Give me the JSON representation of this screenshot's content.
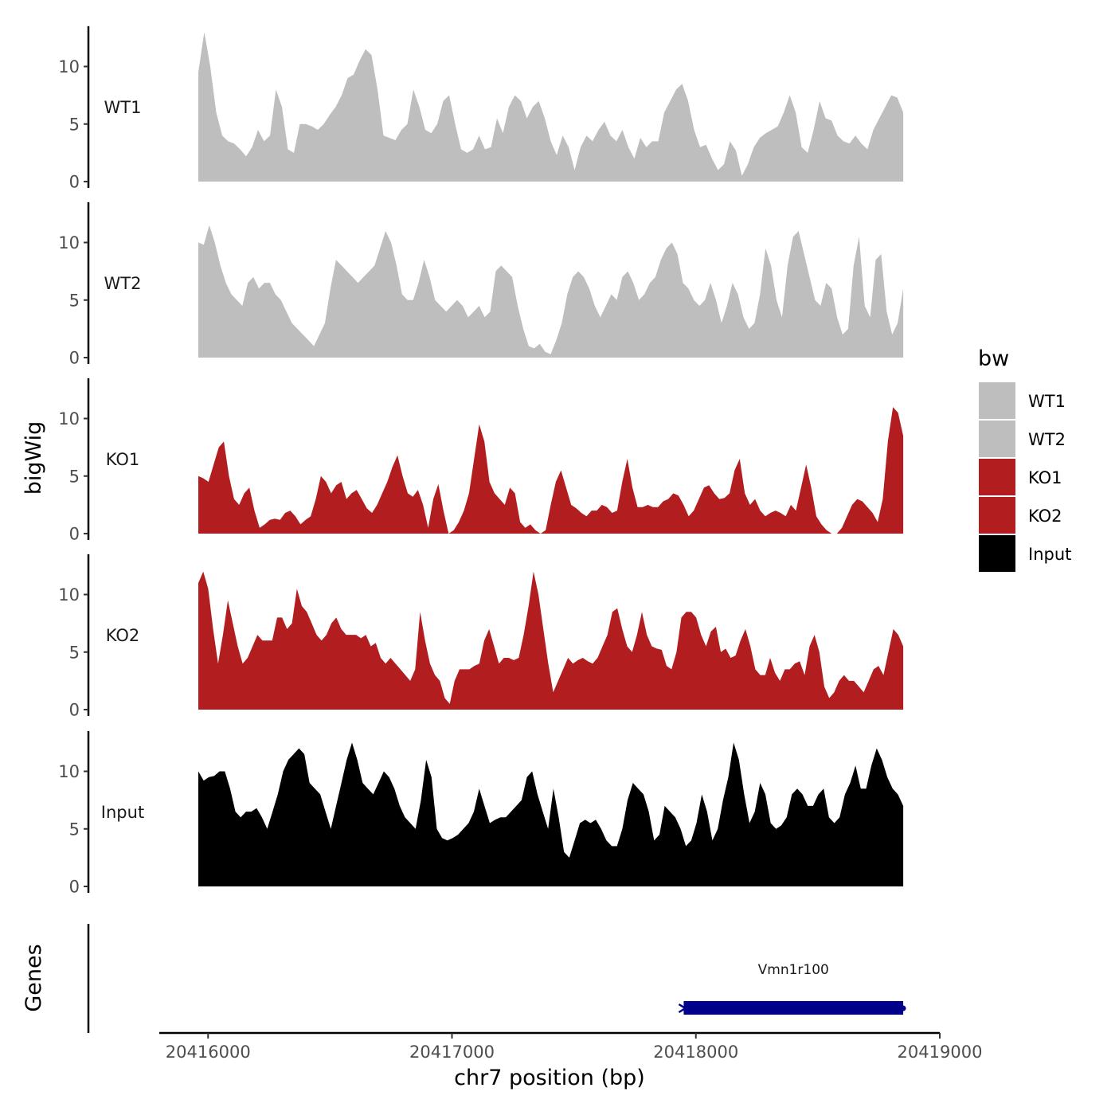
{
  "chart_data": {
    "type": "area",
    "x_axis": {
      "label": "chr7 position (bp)",
      "range": [
        20415800,
        20419000
      ],
      "ticks": [
        20416000,
        20417000,
        20418000,
        20419000
      ],
      "tick_labels": [
        "20416000",
        "20417000",
        "20418000",
        "20419000"
      ]
    },
    "y_axis": {
      "label": "bigWig",
      "range": [
        0,
        13.5
      ],
      "ticks": [
        0,
        5,
        10
      ],
      "tick_labels": [
        "0",
        "5",
        "10"
      ]
    },
    "tracks_x_start": 20415960,
    "tracks_x_end": 20418850,
    "series": [
      {
        "name": "WT1",
        "color": "#bebebe",
        "values": [
          9.5,
          13,
          10,
          6,
          4,
          3.5,
          3.3,
          2.8,
          2.2,
          3,
          4.5,
          3.5,
          4,
          8,
          6.5,
          2.8,
          2.5,
          5,
          5,
          4.8,
          4.5,
          5,
          5.8,
          6.5,
          7.5,
          9,
          9.3,
          10.5,
          11.5,
          11,
          8,
          4,
          3.8,
          3.6,
          4.5,
          5,
          8,
          6.5,
          4.5,
          4.2,
          5,
          7,
          7.5,
          5,
          2.8,
          2.5,
          2.8,
          4,
          2.8,
          3,
          5.5,
          4.2,
          6.5,
          7.5,
          7,
          5.5,
          6.5,
          7,
          5.5,
          3.5,
          2.3,
          4,
          3,
          1,
          3,
          4,
          3.5,
          4.5,
          5.2,
          4,
          3.5,
          4.5,
          3,
          2,
          3.8,
          3,
          3.5,
          3.5,
          6,
          7,
          8,
          8.5,
          7,
          4.5,
          3,
          3.2,
          2,
          1,
          1.5,
          3.5,
          2.7,
          0.5,
          1.5,
          3,
          3.8,
          4.2,
          4.5,
          4.8,
          6,
          7.5,
          6,
          3,
          2.5,
          4.5,
          7,
          5.5,
          5.3,
          4,
          3.5,
          3.3,
          4,
          3.3,
          2.8,
          4.5,
          5.5,
          6.5,
          7.5,
          7.3,
          6
        ]
      },
      {
        "name": "WT2",
        "color": "#bebebe",
        "values": [
          10,
          9.8,
          11.5,
          10,
          8,
          6.5,
          5.5,
          5,
          4.5,
          6.5,
          7,
          6,
          6.5,
          6.5,
          5.5,
          5,
          4,
          3,
          2.5,
          2,
          1.5,
          1,
          2,
          3,
          6,
          8.5,
          8,
          7.5,
          7,
          6.5,
          7,
          7.5,
          8,
          9.5,
          11,
          10,
          8,
          5.5,
          5,
          5,
          6.5,
          8.5,
          7,
          5,
          4.5,
          4,
          4.5,
          5,
          4.5,
          3.5,
          4,
          4.5,
          3.5,
          4,
          7.5,
          8,
          7.5,
          7,
          4.5,
          2.5,
          1,
          0.8,
          1.2,
          0.5,
          0.3,
          1.5,
          3,
          5.5,
          7,
          7.5,
          7,
          6,
          4.5,
          3.5,
          4.5,
          5.5,
          5,
          7,
          7.5,
          6.5,
          5,
          5.5,
          6.5,
          7,
          8.5,
          9.5,
          10,
          9,
          6.5,
          6,
          5,
          4.5,
          5,
          6.5,
          5,
          3,
          4.5,
          6.5,
          5.5,
          3.5,
          2.5,
          3,
          5.5,
          9.5,
          8,
          5,
          3.5,
          8,
          10.5,
          11,
          9,
          7,
          5,
          4.5,
          6.5,
          6,
          3.5,
          2,
          2.5,
          8,
          10.5,
          4.5,
          3.5,
          8.5,
          9,
          4,
          2,
          3,
          6
        ]
      },
      {
        "name": "KO1",
        "color": "#b21e20",
        "values": [
          5,
          4.8,
          4.5,
          6,
          7.5,
          8,
          5,
          3,
          2.5,
          3.5,
          4,
          2,
          0.5,
          0.8,
          1.2,
          1.3,
          1.2,
          1.8,
          2,
          1.5,
          0.8,
          1.2,
          1.5,
          3,
          5,
          4.5,
          3.5,
          4.2,
          4.5,
          3,
          3.5,
          3.8,
          3,
          2.2,
          1.8,
          2.5,
          3.5,
          4.5,
          5.8,
          6.8,
          5,
          3.5,
          3.2,
          3.8,
          2.5,
          0.5,
          3,
          4.3,
          2,
          0,
          0.3,
          1,
          2,
          3.5,
          6.5,
          9.5,
          8,
          4.5,
          3.5,
          3,
          2.5,
          4,
          3.5,
          1,
          0.5,
          0.8,
          0.3,
          0,
          0.3,
          2.5,
          4.5,
          5.5,
          4,
          2.5,
          2.2,
          1.8,
          1.5,
          2,
          2,
          2.5,
          2.3,
          1.8,
          2,
          4.5,
          6.5,
          4,
          2.3,
          2.3,
          2.5,
          2.3,
          2.3,
          2.8,
          3,
          3.5,
          3.3,
          2.5,
          1.5,
          2,
          3,
          4,
          4.2,
          3.5,
          3,
          3.1,
          3.5,
          5.5,
          6.5,
          3.5,
          2.5,
          3,
          2,
          1.5,
          1.8,
          2,
          1.8,
          1.5,
          2.5,
          2,
          4,
          6,
          4,
          1.5,
          0.8,
          0.3,
          0,
          0,
          0.5,
          1.5,
          2.5,
          3,
          2.8,
          2.3,
          1.8,
          1,
          3,
          8,
          11,
          10.5,
          8.5
        ]
      },
      {
        "name": "KO2",
        "color": "#b21e20",
        "values": [
          11,
          12,
          10.5,
          7,
          4,
          6.5,
          9.5,
          7.5,
          5.5,
          4,
          4.5,
          5.5,
          6.5,
          6,
          6,
          6,
          8,
          8,
          7,
          7.5,
          10.5,
          9,
          8.5,
          7.5,
          6.5,
          6,
          6.5,
          7.5,
          8,
          7,
          6.5,
          6.5,
          6.5,
          6.2,
          6.5,
          5.5,
          5.8,
          4.5,
          4,
          4.5,
          4,
          3.5,
          3,
          2.5,
          3.5,
          8.5,
          6,
          4,
          3,
          2.5,
          1,
          0.5,
          2.5,
          3.5,
          3.5,
          3.5,
          3.8,
          4,
          6,
          7,
          5.5,
          4,
          4.5,
          4.5,
          4.3,
          4.5,
          6.5,
          9,
          12,
          10,
          7,
          4,
          1.5,
          2.5,
          3.5,
          4.5,
          4,
          4.3,
          4.5,
          4.2,
          4,
          4.5,
          5.5,
          6.5,
          8.5,
          8.8,
          7,
          5.5,
          5,
          6.5,
          8.5,
          6.5,
          5.5,
          5.3,
          5.2,
          3.8,
          3.5,
          5,
          8,
          8.5,
          8.5,
          8,
          6.5,
          5.5,
          6.8,
          7.2,
          5,
          5.3,
          4.5,
          4.7,
          6,
          7,
          5.5,
          3.5,
          3,
          3,
          4.5,
          3.2,
          2.5,
          3.5,
          3.5,
          4,
          4.2,
          3,
          5.5,
          6.5,
          5,
          2,
          1,
          1.5,
          2.5,
          3,
          2.5,
          2.5,
          2,
          1.5,
          2.5,
          3.5,
          3.8,
          3,
          5,
          7,
          6.5,
          5.5
        ]
      },
      {
        "name": "Input",
        "color": "#000000",
        "values": [
          10,
          9.2,
          9.5,
          9.6,
          10,
          10,
          8.5,
          6.5,
          6,
          6.5,
          6.5,
          6.8,
          6,
          5,
          6.5,
          8,
          10,
          11,
          11.5,
          12,
          11.5,
          9,
          8.5,
          8,
          6.5,
          5,
          7,
          9,
          11,
          12.5,
          11,
          9,
          8.5,
          8,
          9,
          10,
          9.5,
          8.5,
          7,
          6,
          5.5,
          5,
          7.5,
          11,
          9.5,
          5,
          4.2,
          4,
          4.2,
          4.5,
          5,
          5.5,
          6.5,
          8.5,
          7,
          5.5,
          5.8,
          6,
          6,
          6.5,
          7,
          7.5,
          9.5,
          10,
          8,
          6.5,
          5,
          8.5,
          6,
          3,
          2.5,
          4,
          5.5,
          5.8,
          5.5,
          5.8,
          5,
          4,
          3.5,
          3.5,
          5,
          7.5,
          9,
          8.5,
          8,
          6.5,
          4,
          4.5,
          7,
          6.5,
          6,
          5,
          3.5,
          4,
          5.5,
          8,
          6.5,
          4,
          5,
          7.5,
          9.5,
          12.5,
          11,
          8,
          5.5,
          6.5,
          9,
          8,
          5.5,
          5,
          5.3,
          6,
          8,
          8.5,
          8,
          7,
          7,
          8,
          8.5,
          6,
          5.5,
          6,
          8,
          9,
          10.5,
          8.5,
          8.5,
          10.5,
          12,
          11,
          9.5,
          8.5,
          8,
          7
        ]
      }
    ],
    "legend": {
      "title": "bw",
      "position": "right",
      "entries": [
        {
          "label": "WT1",
          "color": "#bebebe"
        },
        {
          "label": "WT2",
          "color": "#bebebe"
        },
        {
          "label": "KO1",
          "color": "#b21e20"
        },
        {
          "label": "KO2",
          "color": "#b21e20"
        },
        {
          "label": "Input",
          "color": "#000000"
        }
      ]
    },
    "genes_track": {
      "title": "Genes",
      "genes": [
        {
          "name": "Vmn1r100",
          "start": 20417950,
          "end": 20418850,
          "color": "#00008b"
        }
      ]
    }
  }
}
